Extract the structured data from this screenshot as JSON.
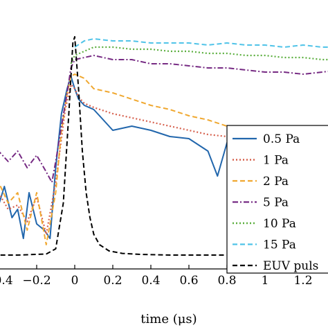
{
  "chart_data": {
    "type": "line",
    "title": "",
    "xlabel": "time (μs)",
    "ylabel": "",
    "xlim": [
      -0.55,
      1.4
    ],
    "ylim": [
      0,
      1.08
    ],
    "grid": false,
    "legend_position": "right",
    "x_ticks": [
      -0.4,
      -0.2,
      0,
      0.2,
      0.4,
      0.6,
      0.8,
      1,
      1.2
    ],
    "x_tick_labels": [
      "−0.4",
      "−0.2",
      "0",
      "0.2",
      "0.4",
      "0.6",
      "0.8",
      "1",
      "1.2"
    ],
    "series": [
      {
        "name": "0.5 Pa",
        "color": "#2166ac",
        "dash": "solid",
        "x": [
          -0.55,
          -0.5,
          -0.46,
          -0.44,
          -0.42,
          -0.4,
          -0.37,
          -0.33,
          -0.3,
          -0.27,
          -0.24,
          -0.2,
          -0.16,
          -0.13,
          -0.1,
          -0.07,
          -0.04,
          -0.02,
          0,
          0.02,
          0.05,
          0.1,
          0.15,
          0.2,
          0.3,
          0.4,
          0.5,
          0.6,
          0.7,
          0.75,
          0.8,
          0.9,
          1.0,
          1.1,
          1.2,
          1.3,
          1.4
        ],
        "y": [
          0.3,
          0.26,
          0.22,
          0.06,
          0.06,
          0.24,
          0.33,
          0.18,
          0.22,
          0.08,
          0.3,
          0.15,
          0.12,
          0.08,
          0.42,
          0.68,
          0.8,
          0.86,
          0.8,
          0.75,
          0.72,
          0.7,
          0.65,
          0.6,
          0.62,
          0.6,
          0.57,
          0.56,
          0.5,
          0.38,
          0.54,
          0.52,
          0.49,
          0.47,
          0.45,
          0.41,
          0.43
        ]
      },
      {
        "name": "1 Pa",
        "color": "#d6604d",
        "dash": "dotted",
        "x": [
          -0.55,
          -0.5,
          -0.45,
          -0.4,
          -0.35,
          -0.3,
          -0.25,
          -0.2,
          -0.15,
          -0.1,
          -0.05,
          -0.02,
          0,
          0.02,
          0.05,
          0.1,
          0.2,
          0.3,
          0.4,
          0.5,
          0.6,
          0.7,
          0.8,
          0.9,
          1.0,
          1.1,
          1.2,
          1.3,
          1.4
        ],
        "y": [
          0.32,
          0.28,
          0.18,
          0.3,
          0.22,
          0.24,
          0.16,
          0.28,
          0.1,
          0.35,
          0.7,
          0.82,
          0.8,
          0.76,
          0.73,
          0.71,
          0.68,
          0.66,
          0.64,
          0.62,
          0.6,
          0.58,
          0.57,
          0.55,
          0.54,
          0.52,
          0.5,
          0.49,
          0.48
        ]
      },
      {
        "name": "2 Pa",
        "color": "#f0a830",
        "dash": "dashed",
        "x": [
          -0.55,
          -0.5,
          -0.45,
          -0.4,
          -0.35,
          -0.3,
          -0.25,
          -0.2,
          -0.15,
          -0.1,
          -0.07,
          -0.04,
          -0.02,
          0,
          0.05,
          0.1,
          0.2,
          0.3,
          0.4,
          0.5,
          0.6,
          0.7,
          0.8,
          0.9,
          1.0,
          1.1,
          1.2,
          1.3,
          1.4
        ],
        "y": [
          0.4,
          0.3,
          0.12,
          0.35,
          0.25,
          0.3,
          0.12,
          0.3,
          0.05,
          0.3,
          0.6,
          0.78,
          0.86,
          0.87,
          0.85,
          0.8,
          0.78,
          0.75,
          0.72,
          0.7,
          0.67,
          0.65,
          0.62,
          0.6,
          0.58,
          0.56,
          0.55,
          0.53,
          0.52
        ]
      },
      {
        "name": "5 Pa",
        "color": "#762a83",
        "dash": "dashdot",
        "x": [
          -0.55,
          -0.5,
          -0.45,
          -0.4,
          -0.35,
          -0.3,
          -0.25,
          -0.2,
          -0.15,
          -0.12,
          -0.1,
          -0.07,
          -0.04,
          -0.02,
          0,
          0.05,
          0.1,
          0.2,
          0.3,
          0.4,
          0.5,
          0.6,
          0.7,
          0.8,
          0.9,
          1.0,
          1.1,
          1.2,
          1.3,
          1.4
        ],
        "y": [
          0.4,
          0.5,
          0.4,
          0.5,
          0.45,
          0.5,
          0.42,
          0.48,
          0.4,
          0.35,
          0.45,
          0.62,
          0.78,
          0.9,
          0.94,
          0.95,
          0.96,
          0.94,
          0.94,
          0.92,
          0.92,
          0.91,
          0.9,
          0.9,
          0.89,
          0.88,
          0.88,
          0.87,
          0.88,
          0.89
        ]
      },
      {
        "name": "10 Pa",
        "color": "#5aae3d",
        "dash": "dotted",
        "x": [
          -0.02,
          0,
          0.05,
          0.1,
          0.2,
          0.3,
          0.4,
          0.5,
          0.6,
          0.7,
          0.8,
          0.9,
          1.0,
          1.1,
          1.2,
          1.3,
          1.4
        ],
        "y": [
          0.92,
          0.96,
          0.98,
          1.0,
          1.0,
          0.99,
          0.99,
          0.98,
          0.98,
          0.97,
          0.97,
          0.96,
          0.96,
          0.95,
          0.95,
          0.94,
          0.94
        ]
      },
      {
        "name": "15 Pa",
        "color": "#4fc3e8",
        "dash": "dashed",
        "x": [
          0,
          0.05,
          0.1,
          0.2,
          0.3,
          0.4,
          0.5,
          0.6,
          0.7,
          0.8,
          0.9,
          1.0,
          1.1,
          1.2,
          1.3,
          1.4
        ],
        "y": [
          1.0,
          1.03,
          1.04,
          1.03,
          1.03,
          1.02,
          1.02,
          1.02,
          1.01,
          1.02,
          1.01,
          1.01,
          1.0,
          1.01,
          1.0,
          1.0
        ]
      },
      {
        "name": "EUV puls",
        "color": "#000000",
        "dash": "dashed",
        "x": [
          -0.55,
          -0.3,
          -0.15,
          -0.1,
          -0.06,
          -0.03,
          -0.01,
          0,
          0.02,
          0.04,
          0.06,
          0.08,
          0.1,
          0.13,
          0.18,
          0.25,
          0.35,
          0.5,
          1.4
        ],
        "y": [
          0.0,
          0.0,
          0.005,
          0.03,
          0.25,
          0.7,
          1.02,
          1.05,
          0.8,
          0.5,
          0.3,
          0.18,
          0.1,
          0.05,
          0.02,
          0.008,
          0.003,
          0.0,
          0.0
        ]
      }
    ]
  }
}
